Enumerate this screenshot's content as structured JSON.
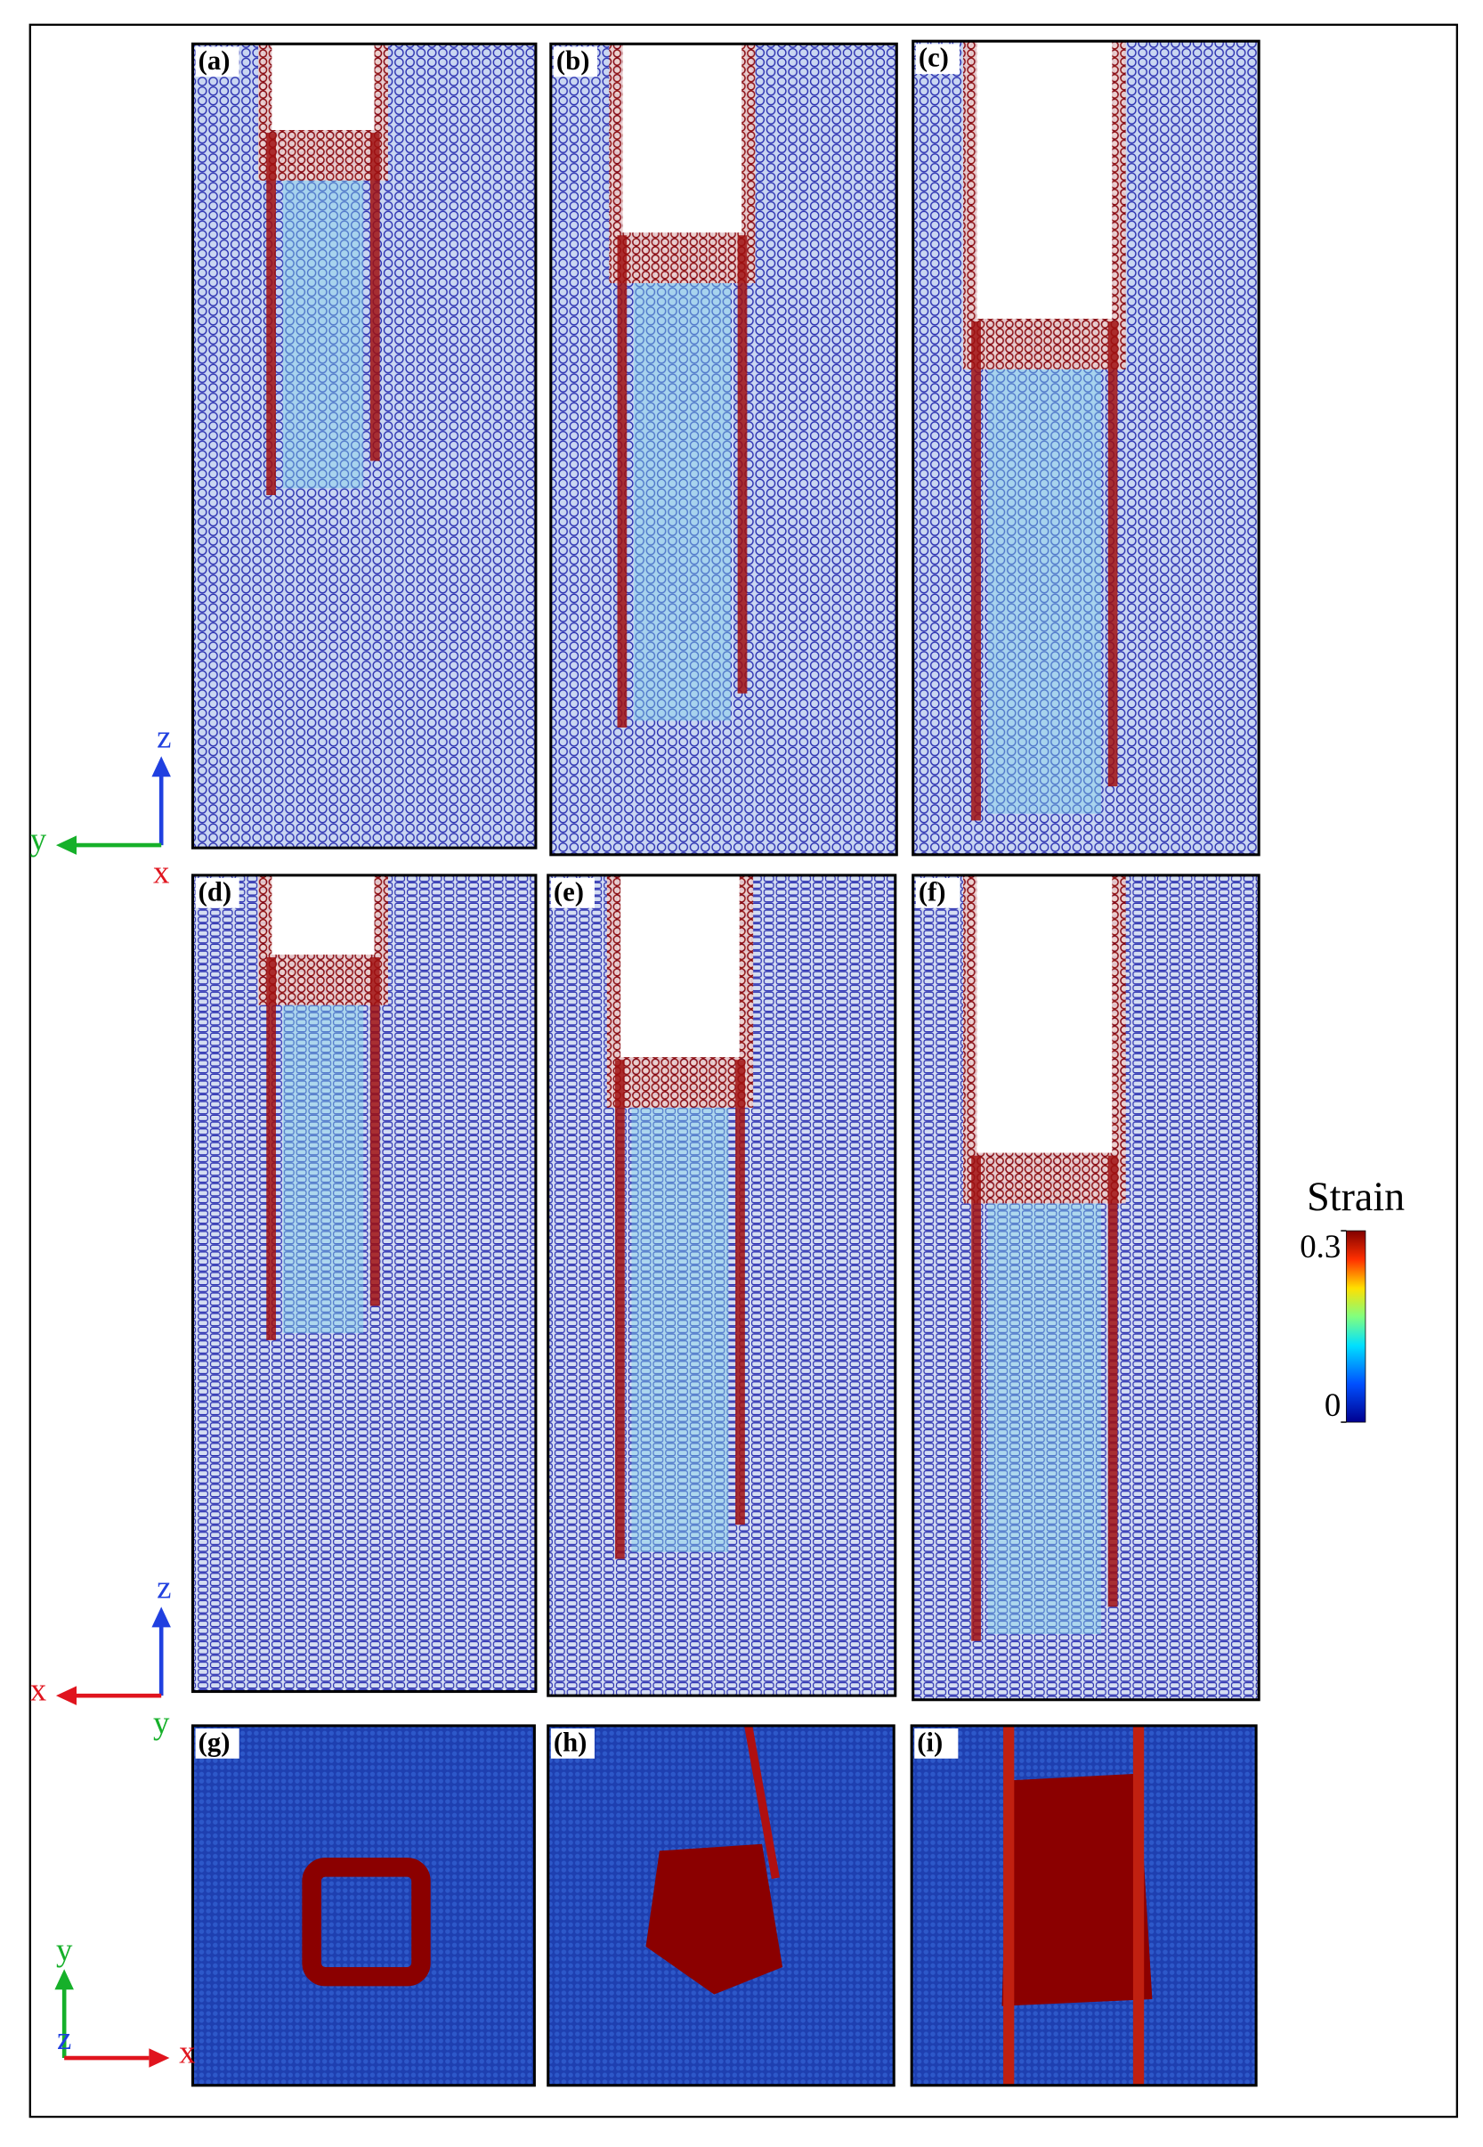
{
  "panels": [
    {
      "label": "(a)"
    },
    {
      "label": "(b)"
    },
    {
      "label": "(c)"
    },
    {
      "label": "(d)"
    },
    {
      "label": "(e)"
    },
    {
      "label": "(f)"
    },
    {
      "label": "(g)"
    },
    {
      "label": "(h)"
    },
    {
      "label": "(i)"
    }
  ],
  "axes": [
    {
      "vertical": "z",
      "horizontal": "y",
      "out": "x"
    },
    {
      "vertical": "z",
      "horizontal": "x",
      "out": "y"
    },
    {
      "vertical": "y",
      "horizontal": "x",
      "out": "z"
    }
  ],
  "colorbar": {
    "title": "Strain",
    "ticks": [
      0,
      0.3
    ]
  }
}
